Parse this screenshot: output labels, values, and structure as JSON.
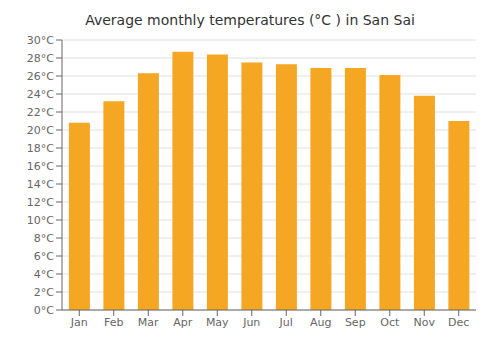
{
  "chart_data": {
    "type": "bar",
    "title": "Average monthly temperatures (°C ) in San Sai",
    "categories": [
      "Jan",
      "Feb",
      "Mar",
      "Apr",
      "May",
      "Jun",
      "Jul",
      "Aug",
      "Sep",
      "Oct",
      "Nov",
      "Dec"
    ],
    "values": [
      20.8,
      23.2,
      26.3,
      28.7,
      28.4,
      27.5,
      27.3,
      26.9,
      26.9,
      26.1,
      23.8,
      21.0
    ],
    "color": "#F5A623",
    "ylim": [
      0,
      30
    ],
    "yticks": [
      {
        "value": 0,
        "label": "0°C"
      },
      {
        "value": 2,
        "label": "2°C"
      },
      {
        "value": 4,
        "label": "4°C"
      },
      {
        "value": 6,
        "label": "6°C"
      },
      {
        "value": 8,
        "label": "8°C"
      },
      {
        "value": 10,
        "label": "10°C"
      },
      {
        "value": 12,
        "label": "12°C"
      },
      {
        "value": 14,
        "label": "14°C"
      },
      {
        "value": 16,
        "label": "16°C"
      },
      {
        "value": 18,
        "label": "18°C"
      },
      {
        "value": 20,
        "label": "20°C"
      },
      {
        "value": 22,
        "label": "22°C"
      },
      {
        "value": 24,
        "label": "24°C"
      },
      {
        "value": 26,
        "label": "26°C"
      },
      {
        "value": 28,
        "label": "28°C"
      },
      {
        "value": 30,
        "label": "30°C"
      }
    ],
    "grid": true
  }
}
